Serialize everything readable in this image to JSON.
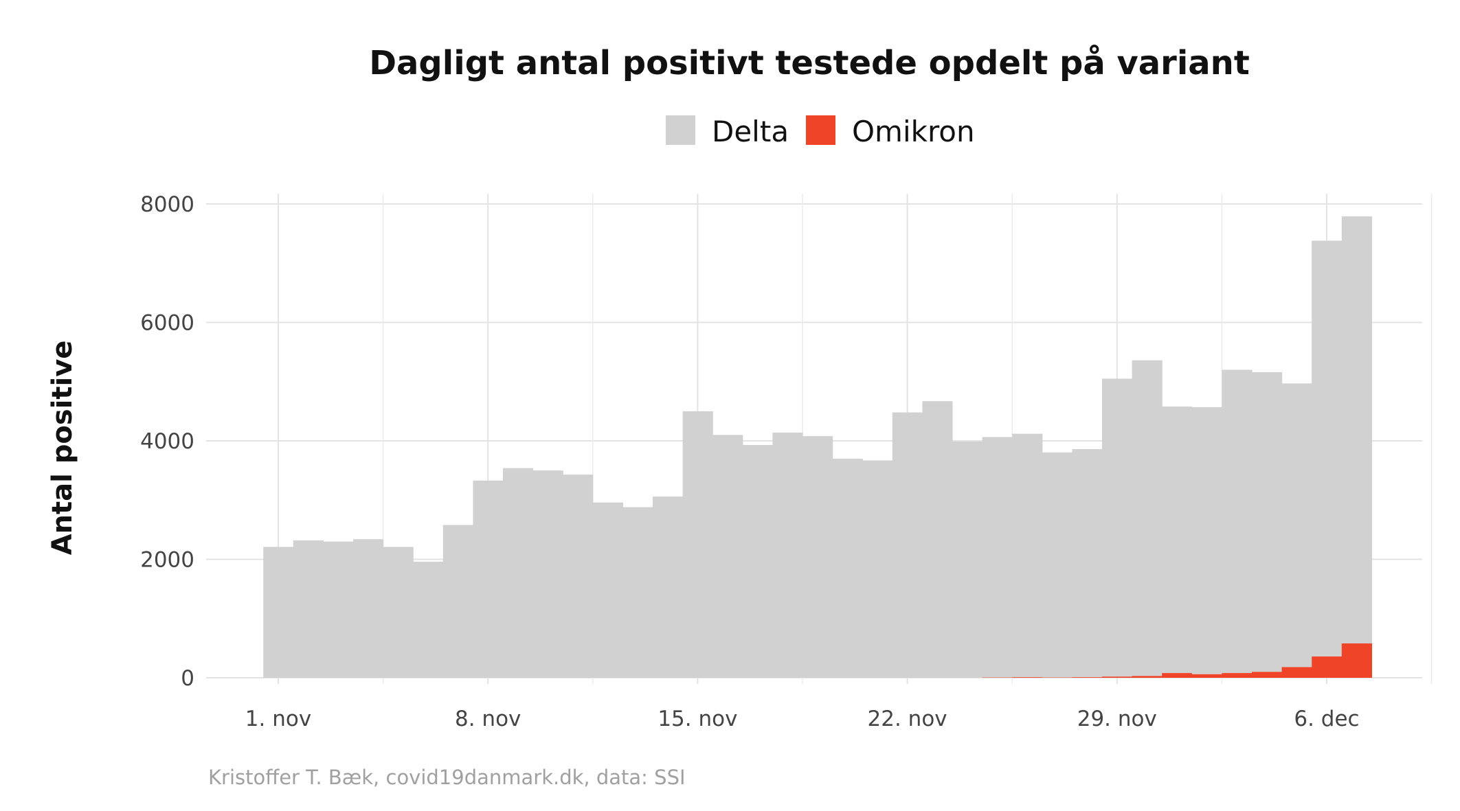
{
  "chart_data": {
    "type": "bar",
    "stacked": true,
    "title": "Dagligt antal positivt testede opdelt på variant",
    "xlabel": "",
    "ylabel": "Antal positive",
    "caption": "Kristoffer T. Bæk, covid19danmark.dk, data: SSI",
    "legend_position": "top",
    "grid": true,
    "ylim": [
      0,
      8000
    ],
    "y_ticks": [
      "0",
      "2000",
      "4000",
      "6000",
      "8000"
    ],
    "x_ticks": [
      "1. nov",
      "8. nov",
      "15. nov",
      "22. nov",
      "29. nov",
      "6. dec"
    ],
    "categories": [
      "2021-11-01",
      "2021-11-02",
      "2021-11-03",
      "2021-11-04",
      "2021-11-05",
      "2021-11-06",
      "2021-11-07",
      "2021-11-08",
      "2021-11-09",
      "2021-11-10",
      "2021-11-11",
      "2021-11-12",
      "2021-11-13",
      "2021-11-14",
      "2021-11-15",
      "2021-11-16",
      "2021-11-17",
      "2021-11-18",
      "2021-11-19",
      "2021-11-20",
      "2021-11-21",
      "2021-11-22",
      "2021-11-23",
      "2021-11-24",
      "2021-11-25",
      "2021-11-26",
      "2021-11-27",
      "2021-11-28",
      "2021-11-29",
      "2021-11-30",
      "2021-12-01",
      "2021-12-02",
      "2021-12-03",
      "2021-12-04",
      "2021-12-05",
      "2021-12-06",
      "2021-12-07"
    ],
    "series": [
      {
        "name": "Delta",
        "color": "#d1d1d1",
        "values": [
          2210,
          2320,
          2300,
          2340,
          2210,
          1960,
          2580,
          3330,
          3540,
          3500,
          3430,
          2960,
          2880,
          3060,
          4500,
          4100,
          3930,
          4140,
          4080,
          3700,
          3670,
          4480,
          4670,
          3990,
          4060,
          4110,
          3800,
          3850,
          5030,
          5330,
          4500,
          4510,
          5120,
          5060,
          4790,
          7020,
          7210
        ]
      },
      {
        "name": "Omikron",
        "color": "#f04428",
        "values": [
          0,
          0,
          0,
          0,
          0,
          0,
          0,
          0,
          0,
          0,
          0,
          0,
          0,
          0,
          0,
          0,
          0,
          0,
          0,
          0,
          0,
          0,
          0,
          0,
          5,
          10,
          5,
          10,
          20,
          30,
          80,
          60,
          80,
          100,
          180,
          360,
          580
        ]
      }
    ]
  }
}
